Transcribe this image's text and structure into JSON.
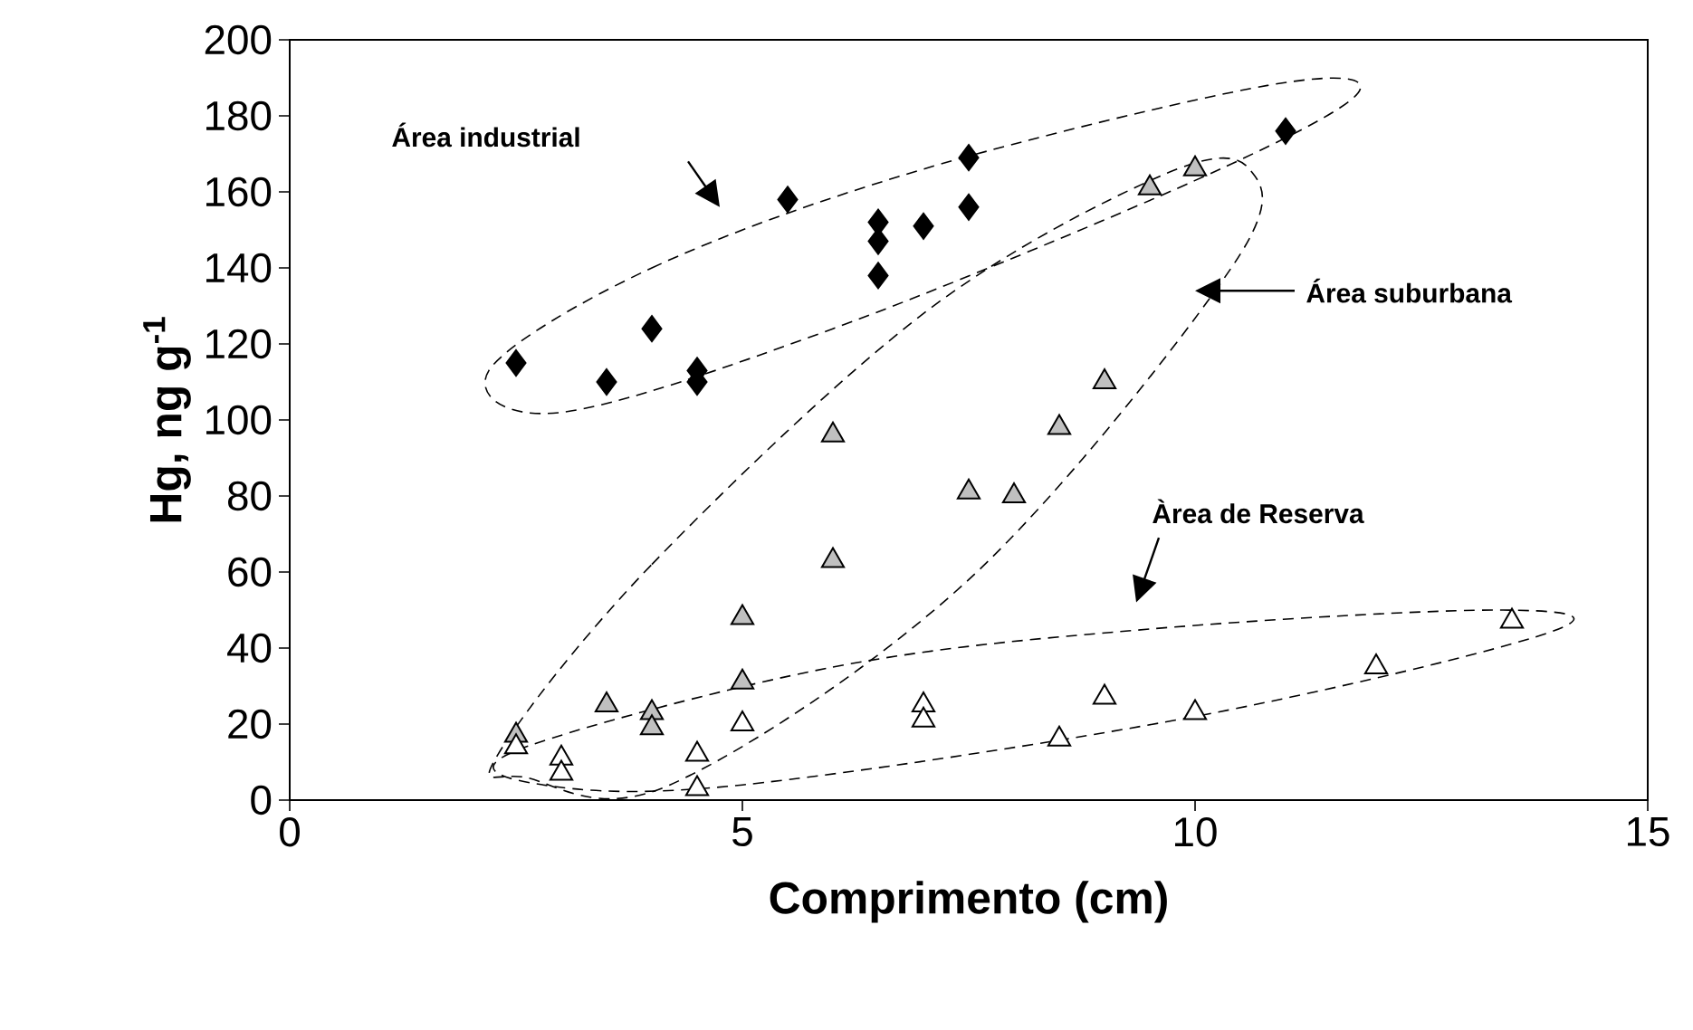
{
  "chart_data": {
    "type": "scatter",
    "xlabel": "Comprimento (cm)",
    "ylabel": "Hg, ng g$^{-1}$",
    "xlim": [
      0,
      15
    ],
    "xticks": [
      0,
      5,
      10,
      15
    ],
    "ylim": [
      0,
      200
    ],
    "yticks": [
      0,
      20,
      40,
      60,
      80,
      100,
      120,
      140,
      160,
      180,
      200
    ],
    "grid": false,
    "series": [
      {
        "color": "#000000",
        "marker": "diamond",
        "x": [
          2.5,
          3.5,
          4,
          4.5,
          4.5,
          5.5,
          6.5,
          6.5,
          6.5,
          7,
          7.5,
          7.5,
          11
        ],
        "values": [
          115,
          110,
          124,
          110,
          113,
          158,
          152,
          147,
          138,
          151,
          156,
          169,
          176
        ]
      },
      {
        "color": "#c0c0c0",
        "marker": "triangle",
        "x": [
          2.5,
          3.5,
          4,
          4,
          5,
          5,
          6,
          6,
          7.5,
          8,
          8.5,
          9,
          9.5,
          10
        ],
        "values": [
          17,
          25,
          23,
          19,
          31,
          48,
          63,
          96,
          81,
          80,
          98,
          110,
          161,
          166
        ]
      },
      {
        "color": "#ffffff",
        "marker": "triangle",
        "x": [
          2.5,
          3,
          3,
          4.5,
          4.5,
          5,
          7,
          7,
          8.5,
          9,
          10,
          12,
          13.5
        ],
        "values": [
          14,
          11,
          7,
          12,
          3,
          20,
          25,
          21,
          16,
          27,
          23,
          35,
          47
        ]
      }
    ],
    "annotations": [
      "Área industrial",
      "Área suburbana",
      "Àrea de Reserva"
    ]
  }
}
